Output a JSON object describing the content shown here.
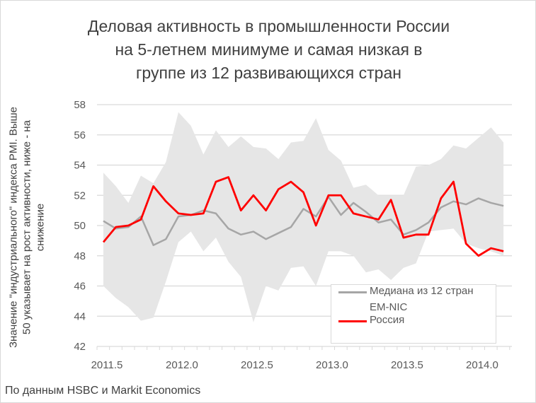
{
  "chart_data": {
    "type": "line",
    "title_lines": [
      "Деловая активность в промышленности России",
      "на 5-летнем минимуме и самая низкая в",
      "группе из 12 развивающихся стран"
    ],
    "ylabel_lines": [
      "Значение \"индустриального\" индекса PMI. Выше",
      "50 указывает на рост активности, ниже - на",
      "снижение"
    ],
    "source": "По данным HSBC и Markit Economics",
    "ylim": [
      42,
      58
    ],
    "yticks": [
      42,
      44,
      46,
      48,
      50,
      52,
      54,
      56,
      58
    ],
    "xticks": [
      "2011.5",
      "2012.0",
      "2012.5",
      "2013.0",
      "2013.5",
      "2014.0"
    ],
    "xtick_values": [
      2011.5,
      2012.0,
      2012.5,
      2013.0,
      2013.5,
      2014.0
    ],
    "x_start": 2011.42,
    "x_step": 0.0833,
    "legend": {
      "placement": "bottom-right",
      "median_label": "Медиана из 12 стран",
      "median_label2": "EM-NIC",
      "russia_label": "Россия"
    },
    "colors": {
      "russia": "#ff0000",
      "median": "#a6a6a6",
      "band": "#e6e6e6",
      "grid": "#d9d9d9"
    },
    "series": [
      {
        "name": "Россия",
        "values": [
          48.9,
          49.9,
          50.0,
          50.4,
          52.6,
          51.6,
          50.8,
          50.7,
          50.8,
          52.9,
          53.2,
          51.0,
          52.0,
          51.0,
          52.4,
          52.9,
          52.2,
          50.0,
          52.0,
          52.0,
          50.8,
          50.6,
          50.4,
          51.7,
          49.2,
          49.4,
          49.4,
          51.8,
          52.9,
          48.8,
          48.0,
          48.5,
          48.3
        ]
      },
      {
        "name": "Медиана из 12 стран EM-NIC",
        "values": [
          50.3,
          49.8,
          49.9,
          50.6,
          48.7,
          49.1,
          50.6,
          50.7,
          51.0,
          50.8,
          49.8,
          49.4,
          49.6,
          49.1,
          49.5,
          49.9,
          51.1,
          50.6,
          51.9,
          50.7,
          51.5,
          50.9,
          50.2,
          50.4,
          49.4,
          49.7,
          50.2,
          51.2,
          51.6,
          51.4,
          51.8,
          51.5,
          51.3
        ]
      },
      {
        "name": "band_max",
        "values": [
          53.5,
          52.6,
          51.5,
          53.3,
          52.8,
          54.2,
          57.5,
          56.6,
          54.7,
          56.3,
          55.2,
          55.9,
          55.2,
          55.1,
          54.4,
          55.5,
          55.6,
          57.1,
          55.0,
          54.3,
          52.5,
          52.7,
          52.0,
          52.0,
          52.0,
          53.9,
          54.0,
          54.4,
          55.3,
          55.1,
          55.8,
          56.5,
          55.5
        ]
      },
      {
        "name": "band_min",
        "values": [
          46.0,
          45.2,
          44.6,
          43.7,
          43.9,
          46.3,
          48.9,
          49.6,
          48.3,
          49.2,
          47.6,
          46.6,
          43.6,
          46.0,
          45.7,
          47.2,
          47.3,
          46.0,
          48.3,
          48.3,
          48.0,
          46.9,
          47.1,
          46.4,
          47.2,
          47.5,
          49.6,
          49.7,
          49.8,
          48.8,
          48.5,
          48.3,
          48.0
        ]
      }
    ]
  }
}
